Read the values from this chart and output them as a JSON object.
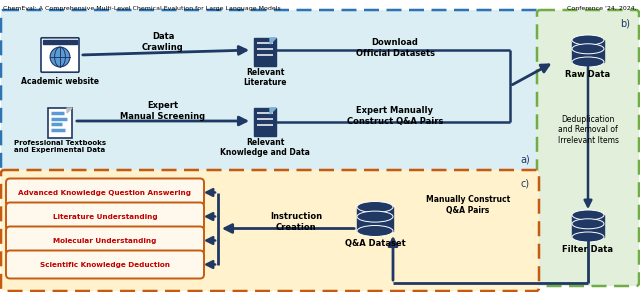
{
  "title_left": "ChemEval: A Comprehensive Multi-Level Chemical Evalution for Large Language Models",
  "title_right": "Conference '24, 2024,",
  "fig_width": 6.4,
  "fig_height": 2.92,
  "dpi": 100,
  "bg_color": "#ffffff",
  "panel_a_bg": "#daeef3",
  "panel_a_border": "#2e74b5",
  "panel_b_bg": "#e2efda",
  "panel_b_border": "#70ad47",
  "panel_c_bg": "#fff2cc",
  "panel_c_border": "#c55a11",
  "dark_blue": "#1f3864",
  "label_a": "a)",
  "label_b": "b)",
  "label_c": "c)",
  "box_red_text": "#c00000",
  "box_fill": "#fef9ec",
  "box_border": "#c55a11",
  "categories": [
    "Advanced Knowledge Question Answering",
    "Literature Understanding",
    "Molecular Understanding",
    "Scientific Knowledge Deduction"
  ]
}
